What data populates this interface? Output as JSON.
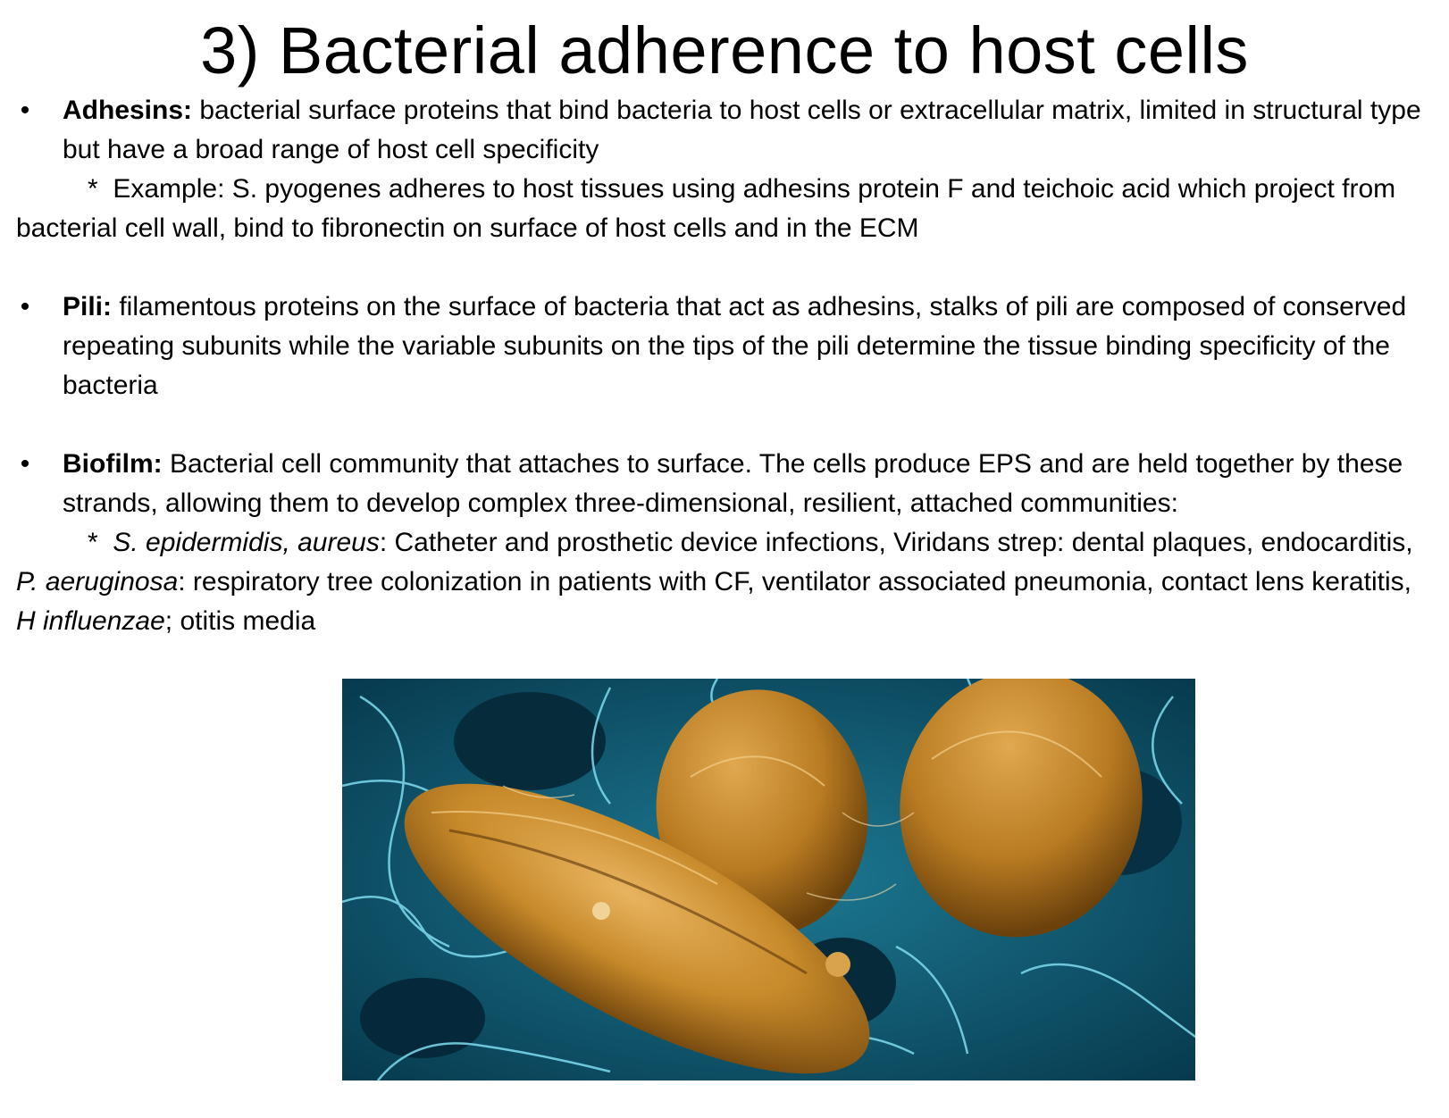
{
  "title": "3) Bacterial adherence to host cells",
  "bullet_symbol": "•",
  "sub_marker": "*",
  "adhesins": {
    "term": "Adhesins:",
    "text": " bacterial surface proteins that bind bacteria to host cells or extracellular matrix, limited in structural type but have a broad range of host cell specificity",
    "example": "Example: S. pyogenes adheres to host tissues using adhesins protein F and teichoic acid which project from bacterial cell wall, bind to fibronectin on surface of host cells and in the ECM"
  },
  "pili": {
    "term": "Pili:",
    "text": " filamentous proteins on the surface of bacteria that act as adhesins, stalks of pili are composed of conserved repeating subunits while the variable subunits on the tips of the pili determine the tissue binding specificity of the bacteria"
  },
  "biofilm": {
    "term": "Biofilm:",
    "text": "  Bacterial cell community that attaches to surface. The cells produce EPS and are held together by these strands, allowing them to develop complex three-dimensional, resilient, attached communities:",
    "example_parts": {
      "org1": "S. epidermidis, aureus",
      "t1": ": Catheter and prosthetic device infections, Viridans strep: dental plaques, endocarditis, ",
      "org2": "P. aeruginosa",
      "t2": ": respiratory tree colonization in patients with CF, ventilator associated pneumonia, contact lens keratitis, ",
      "org3": "H influenzae",
      "t3": "; otitis media"
    }
  },
  "colors": {
    "bacteria": "#c88a2a",
    "background_fibers": "#5fc8e0",
    "background_dark": "#0e5a74"
  }
}
